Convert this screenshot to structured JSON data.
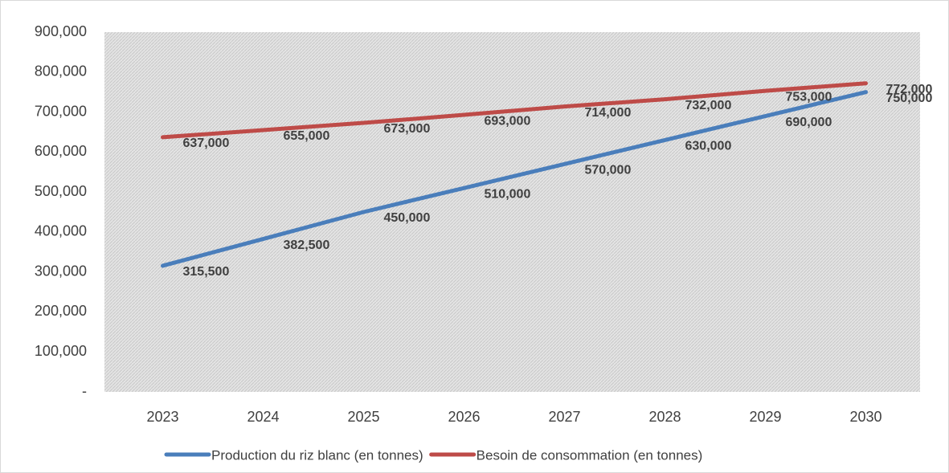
{
  "chart_data": {
    "type": "line",
    "categories": [
      "2023",
      "2024",
      "2025",
      "2026",
      "2027",
      "2028",
      "2029",
      "2030"
    ],
    "series": [
      {
        "name": "Production du riz blanc (en tonnes)",
        "color": "#4a7ebb",
        "values": [
          315500,
          382500,
          450000,
          510000,
          570000,
          630000,
          690000,
          750000
        ],
        "value_labels": [
          "315,500",
          "382,500",
          "450,000",
          "510,000",
          "570,000",
          "630,000",
          "690,000",
          "750,000"
        ]
      },
      {
        "name": "Besoin de consommation (en tonnes)",
        "color": "#be4b48",
        "values": [
          637000,
          655000,
          673000,
          693000,
          714000,
          732000,
          753000,
          772000
        ],
        "value_labels": [
          "637,000",
          "655,000",
          "673,000",
          "693,000",
          "714,000",
          "732,000",
          "753,000",
          "772,000"
        ]
      }
    ],
    "ylim": [
      0,
      900000
    ],
    "yticks": [
      {
        "value": 0,
        "label": "-"
      },
      {
        "value": 100000,
        "label": "100,000"
      },
      {
        "value": 200000,
        "label": "200,000"
      },
      {
        "value": 300000,
        "label": "300,000"
      },
      {
        "value": 400000,
        "label": "400,000"
      },
      {
        "value": 500000,
        "label": "500,000"
      },
      {
        "value": 600000,
        "label": "600,000"
      },
      {
        "value": 700000,
        "label": "700,000"
      },
      {
        "value": 800000,
        "label": "800,000"
      },
      {
        "value": 900000,
        "label": "900,000"
      }
    ],
    "legend": "bottom"
  }
}
